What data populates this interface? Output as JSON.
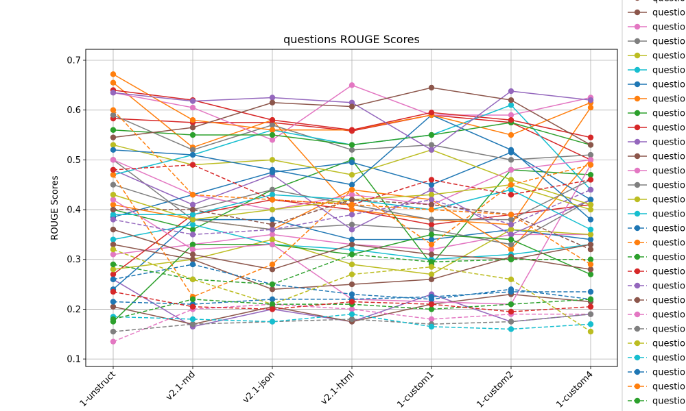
{
  "chart_data": {
    "type": "line",
    "title": "questions ROUGE Scores",
    "xlabel": "",
    "ylabel": "ROUGE Scores",
    "categories": [
      "1-unstruct",
      "v2.1-md",
      "v2.1-json",
      "v2.1-html",
      "1-custom1",
      "1-custom2",
      "1-custom4"
    ],
    "ylim": [
      0.085,
      0.722
    ],
    "yticks": [
      0.1,
      0.2,
      0.3,
      0.4,
      0.5,
      0.6,
      0.7
    ],
    "grid": true,
    "legend": "right, clipped at image edge",
    "legend_label": "questio",
    "series": [
      {
        "color": "#8c564b",
        "dash": false,
        "values": [
          0.36,
          0.31,
          0.28,
          0.33,
          0.31,
          0.3,
          0.33
        ]
      },
      {
        "color": "#e377c2",
        "dash": false,
        "values": [
          0.635,
          0.605,
          0.54,
          0.65,
          0.59,
          0.59,
          0.625
        ]
      },
      {
        "color": "#7f7f7f",
        "dash": false,
        "values": [
          0.59,
          0.52,
          0.57,
          0.52,
          0.53,
          0.5,
          0.51
        ]
      },
      {
        "color": "#bcbd22",
        "dash": false,
        "values": [
          0.53,
          0.49,
          0.5,
          0.47,
          0.52,
          0.46,
          0.41
        ]
      },
      {
        "color": "#17becf",
        "dash": false,
        "values": [
          0.47,
          0.51,
          0.56,
          0.53,
          0.55,
          0.61,
          0.44
        ]
      },
      {
        "color": "#1f77b4",
        "dash": false,
        "values": [
          0.52,
          0.51,
          0.48,
          0.45,
          0.59,
          0.52,
          0.38
        ]
      },
      {
        "color": "#ff7f0e",
        "dash": false,
        "values": [
          0.672,
          0.58,
          0.56,
          0.56,
          0.59,
          0.55,
          0.615
        ]
      },
      {
        "color": "#2ca02c",
        "dash": false,
        "values": [
          0.56,
          0.55,
          0.55,
          0.53,
          0.55,
          0.575,
          0.53
        ]
      },
      {
        "color": "#d62728",
        "dash": false,
        "values": [
          0.64,
          0.62,
          0.58,
          0.56,
          0.595,
          0.58,
          0.545
        ]
      },
      {
        "color": "#9467bd",
        "dash": false,
        "values": [
          0.635,
          0.618,
          0.625,
          0.615,
          0.52,
          0.638,
          0.62
        ]
      },
      {
        "color": "#8c564b",
        "dash": false,
        "values": [
          0.545,
          0.565,
          0.615,
          0.607,
          0.645,
          0.62,
          0.53
        ]
      },
      {
        "color": "#e377c2",
        "dash": false,
        "values": [
          0.5,
          0.43,
          0.4,
          0.43,
          0.41,
          0.48,
          0.5
        ]
      },
      {
        "color": "#7f7f7f",
        "dash": false,
        "values": [
          0.45,
          0.4,
          0.44,
          0.41,
          0.38,
          0.38,
          0.46
        ]
      },
      {
        "color": "#bcbd22",
        "dash": false,
        "values": [
          0.43,
          0.38,
          0.4,
          0.42,
          0.43,
          0.45,
          0.4
        ]
      },
      {
        "color": "#17becf",
        "dash": false,
        "values": [
          0.39,
          0.39,
          0.43,
          0.42,
          0.4,
          0.44,
          0.36
        ]
      },
      {
        "color": "#1f77b4",
        "dash": true,
        "values": [
          0.26,
          0.29,
          0.25,
          0.23,
          0.22,
          0.24,
          0.22
        ]
      },
      {
        "color": "#ff7f0e",
        "dash": true,
        "values": [
          0.47,
          0.225,
          0.29,
          0.44,
          0.33,
          0.45,
          0.49
        ]
      },
      {
        "color": "#2ca02c",
        "dash": true,
        "values": [
          0.29,
          0.26,
          0.25,
          0.31,
          0.295,
          0.3,
          0.3
        ]
      },
      {
        "color": "#d62728",
        "dash": true,
        "values": [
          0.48,
          0.49,
          0.42,
          0.41,
          0.46,
          0.43,
          0.46
        ]
      },
      {
        "color": "#9467bd",
        "dash": true,
        "values": [
          0.38,
          0.35,
          0.36,
          0.39,
          0.42,
          0.37,
          0.44
        ]
      },
      {
        "color": "#8c564b",
        "dash": true,
        "values": [
          0.4,
          0.4,
          0.37,
          0.42,
          0.41,
          0.39,
          0.32
        ]
      },
      {
        "color": "#e377c2",
        "dash": true,
        "values": [
          0.135,
          0.2,
          0.21,
          0.2,
          0.18,
          0.19,
          0.19
        ]
      },
      {
        "color": "#7f7f7f",
        "dash": true,
        "values": [
          0.155,
          0.17,
          0.175,
          0.18,
          0.17,
          0.175,
          0.19
        ]
      },
      {
        "color": "#bcbd22",
        "dash": true,
        "values": [
          0.32,
          0.26,
          0.21,
          0.27,
          0.285,
          0.26,
          0.155
        ]
      },
      {
        "color": "#17becf",
        "dash": true,
        "values": [
          0.185,
          0.18,
          0.175,
          0.19,
          0.165,
          0.16,
          0.17
        ]
      },
      {
        "color": "#1f77b4",
        "dash": true,
        "values": [
          0.215,
          0.21,
          0.22,
          0.22,
          0.225,
          0.235,
          0.235
        ]
      },
      {
        "color": "#ff7f0e",
        "dash": true,
        "values": [
          0.6,
          0.43,
          0.42,
          0.41,
          0.4,
          0.39,
          0.29
        ]
      },
      {
        "color": "#2ca02c",
        "dash": true,
        "values": [
          0.18,
          0.22,
          0.21,
          0.21,
          0.2,
          0.21,
          0.22
        ]
      },
      {
        "color": "#d62728",
        "dash": true,
        "values": [
          0.235,
          0.205,
          0.2,
          0.215,
          0.21,
          0.195,
          0.205
        ]
      }
    ],
    "extra_solid": [
      {
        "color": "#9467bd",
        "values": [
          0.26,
          0.165,
          0.2,
          0.175,
          0.23,
          0.175,
          0.19
        ]
      },
      {
        "color": "#8c564b",
        "values": [
          0.205,
          0.17,
          0.205,
          0.175,
          0.21,
          0.23,
          0.215
        ]
      },
      {
        "color": "#e377c2",
        "values": [
          0.31,
          0.33,
          0.35,
          0.33,
          0.32,
          0.35,
          0.35
        ]
      },
      {
        "color": "#d62728",
        "values": [
          0.27,
          0.39,
          0.42,
          0.4,
          0.37,
          0.39,
          0.41
        ]
      },
      {
        "color": "#1f77b4",
        "values": [
          0.24,
          0.38,
          0.38,
          0.34,
          0.34,
          0.36,
          0.34
        ]
      },
      {
        "color": "#2ca02c",
        "values": [
          0.4,
          0.36,
          0.44,
          0.5,
          0.29,
          0.48,
          0.47
        ]
      },
      {
        "color": "#ff7f0e",
        "values": [
          0.41,
          0.38,
          0.36,
          0.44,
          0.42,
          0.32,
          0.5
        ]
      },
      {
        "color": "#7f7f7f",
        "values": [
          0.5,
          0.38,
          0.36,
          0.37,
          0.36,
          0.33,
          0.42
        ]
      },
      {
        "color": "#17becf",
        "values": [
          0.34,
          0.37,
          0.33,
          0.32,
          0.3,
          0.31,
          0.33
        ]
      },
      {
        "color": "#bcbd22",
        "values": [
          0.28,
          0.3,
          0.34,
          0.29,
          0.27,
          0.36,
          0.35
        ]
      },
      {
        "color": "#9467bd",
        "values": [
          0.48,
          0.41,
          0.47,
          0.36,
          0.44,
          0.35,
          0.42
        ]
      },
      {
        "color": "#d62728",
        "values": [
          0.583,
          0.575,
          0.575,
          0.558,
          0.59,
          0.575,
          0.5
        ]
      },
      {
        "color": "#1f77b4",
        "values": [
          0.385,
          0.43,
          0.475,
          0.495,
          0.45,
          0.515,
          0.42
        ]
      },
      {
        "color": "#2ca02c",
        "values": [
          0.175,
          0.33,
          0.33,
          0.31,
          0.35,
          0.34,
          0.27
        ]
      },
      {
        "color": "#ff7f0e",
        "values": [
          0.655,
          0.525,
          0.58,
          0.4,
          0.38,
          0.37,
          0.605
        ]
      },
      {
        "color": "#e377c2",
        "values": [
          0.42,
          0.32,
          0.33,
          0.22,
          0.215,
          0.21,
          0.49
        ]
      },
      {
        "color": "#8c564b",
        "values": [
          0.33,
          0.3,
          0.24,
          0.25,
          0.26,
          0.305,
          0.28
        ]
      }
    ]
  }
}
